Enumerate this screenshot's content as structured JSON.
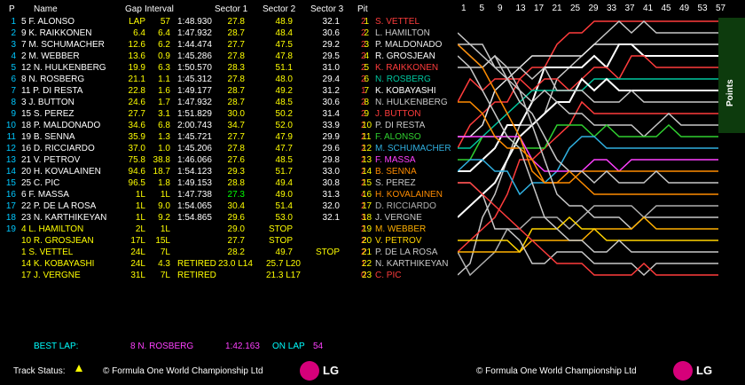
{
  "headers": {
    "p": "P",
    "name": "Name",
    "gap": "Gap",
    "interval": "Interval",
    "s1": "Sector 1",
    "s2": "Sector 2",
    "s3": "Sector 3",
    "pit": "Pit"
  },
  "timing": [
    {
      "p": "1",
      "name": "5 F. ALONSO",
      "gap": "LAP",
      "int": "57",
      "lap": "1:48.930",
      "s1": "27.8",
      "s2": "48.9",
      "s3": "32.1",
      "pit": "2",
      "gapColor": "#ffff00",
      "s1Color": "#ffff00",
      "s2Color": "#ffff00",
      "s3Color": "#fff"
    },
    {
      "p": "2",
      "name": "9 K. RAIKKONEN",
      "gap": "6.4",
      "int": "6.4",
      "lap": "1:47.932",
      "s1": "28.7",
      "s2": "48.4",
      "s3": "30.6",
      "pit": "2"
    },
    {
      "p": "3",
      "name": "7 M. SCHUMACHER",
      "gap": "12.6",
      "int": "6.2",
      "lap": "1:44.474",
      "s1": "27.7",
      "s2": "47.5",
      "s3": "29.2",
      "pit": "2"
    },
    {
      "p": "4",
      "name": "2 M. WEBBER",
      "gap": "13.6",
      "int": "0.9",
      "lap": "1:45.286",
      "s1": "27.8",
      "s2": "47.8",
      "s3": "29.5",
      "pit": "2"
    },
    {
      "p": "5",
      "name": "12 N. HULKENBERG",
      "gap": "19.9",
      "int": "6.3",
      "lap": "1:50.570",
      "s1": "28.3",
      "s2": "51.1",
      "s3": "31.0",
      "pit": "2"
    },
    {
      "p": "6",
      "name": "8 N. ROSBERG",
      "gap": "21.1",
      "int": "1.1",
      "lap": "1:45.312",
      "s1": "27.8",
      "s2": "48.0",
      "s3": "29.4",
      "pit": "2"
    },
    {
      "p": "7",
      "name": "11 P. DI RESTA",
      "gap": "22.8",
      "int": "1.6",
      "lap": "1:49.177",
      "s1": "28.7",
      "s2": "49.2",
      "s3": "31.2",
      "pit": "1"
    },
    {
      "p": "8",
      "name": "3 J. BUTTON",
      "gap": "24.6",
      "int": "1.7",
      "lap": "1:47.932",
      "s1": "28.7",
      "s2": "48.5",
      "s3": "30.6",
      "pit": "2"
    },
    {
      "p": "9",
      "name": "15 S. PEREZ",
      "gap": "27.7",
      "int": "3.1",
      "lap": "1:51.829",
      "s1": "30.0",
      "s2": "50.2",
      "s3": "31.4",
      "pit": "2"
    },
    {
      "p": "10",
      "name": "18 P. MALDONADO",
      "gap": "34.6",
      "int": "6.8",
      "lap": "2:00.743",
      "s1": "34.7",
      "s2": "52.0",
      "s3": "33.9",
      "pit": "2"
    },
    {
      "p": "11",
      "name": "19 B. SENNA",
      "gap": "35.9",
      "int": "1.3",
      "lap": "1:45.721",
      "s1": "27.7",
      "s2": "47.9",
      "s3": "29.9",
      "pit": "2"
    },
    {
      "p": "12",
      "name": "16 D. RICCIARDO",
      "gap": "37.0",
      "int": "1.0",
      "lap": "1:45.206",
      "s1": "27.8",
      "s2": "47.7",
      "s3": "29.6",
      "pit": "2"
    },
    {
      "p": "13",
      "name": "21 V. PETROV",
      "gap": "75.8",
      "int": "38.8",
      "lap": "1:46.066",
      "s1": "27.6",
      "s2": "48.5",
      "s3": "29.8",
      "pit": "2"
    },
    {
      "p": "14",
      "name": "20 H. KOVALAINEN",
      "gap": "94.6",
      "int": "18.7",
      "lap": "1:54.123",
      "s1": "29.3",
      "s2": "51.7",
      "s3": "33.0",
      "pit": "2"
    },
    {
      "p": "15",
      "name": "25 C. PIC",
      "gap": "96.5",
      "int": "1.8",
      "lap": "1:49.153",
      "s1": "28.8",
      "s2": "49.4",
      "s3": "30.8",
      "pit": "2"
    },
    {
      "p": "16",
      "name": "6 F. MASSA",
      "gap": "1L",
      "int": "1L",
      "lap": "1:47.738",
      "s1": "27.3",
      "s2": "49.0",
      "s3": "31.3",
      "pit": "4",
      "s1Color": "#00ff00"
    },
    {
      "p": "17",
      "name": "22 P. DE LA ROSA",
      "gap": "1L",
      "int": "9.0",
      "lap": "1:54.065",
      "s1": "30.4",
      "s2": "51.4",
      "s3": "32.0",
      "pit": "2"
    },
    {
      "p": "18",
      "name": "23 N. KARTHIKEYAN",
      "gap": "1L",
      "int": "9.2",
      "lap": "1:54.865",
      "s1": "29.6",
      "s2": "53.0",
      "s3": "32.1",
      "pit": "3"
    },
    {
      "p": "19",
      "name": "4 L. HAMILTON",
      "gap": "2L",
      "int": "1L",
      "lap": "",
      "s1": "29.0",
      "s2": "STOP",
      "s3": "",
      "pit": "2",
      "nameColor": "#ffff00",
      "s2Color": "#ffff00"
    },
    {
      "p": "",
      "name": "10 R. GROSJEAN",
      "gap": "17L",
      "int": "15L",
      "lap": "",
      "s1": "27.7",
      "s2": "STOP",
      "s3": "",
      "pit": "2",
      "nameColor": "#ffff00",
      "s2Color": "#ffff00"
    },
    {
      "p": "",
      "name": "1 S. VETTEL",
      "gap": "24L",
      "int": "7L",
      "lap": "",
      "s1": "28.2",
      "s2": "49.7",
      "s3": "STOP",
      "pit": "2",
      "nameColor": "#ffff00",
      "s3Color": "#ffff00"
    },
    {
      "p": "",
      "name": "14 K. KOBAYASHI",
      "gap": "24L",
      "int": "4.3",
      "lap": "RETIRED",
      "s1": "23.0 L14",
      "s2": "25.7 L20",
      "s3": "",
      "pit": "1",
      "nameColor": "#ffff00",
      "lapColor": "#ffff00"
    },
    {
      "p": "",
      "name": "17 J. VERGNE",
      "gap": "31L",
      "int": "7L",
      "lap": "RETIRED",
      "s1": "",
      "s2": "21.3 L17",
      "s3": "",
      "pit": "0",
      "nameColor": "#ffff00",
      "lapColor": "#ffff00"
    }
  ],
  "graph": {
    "lap_labels": [
      "1",
      "5",
      "9",
      "13",
      "17",
      "21",
      "25",
      "29",
      "33",
      "37",
      "41",
      "45",
      "49",
      "53",
      "57"
    ],
    "points_label": "Points",
    "standings": [
      {
        "pos": "1",
        "name": "S. VETTEL",
        "color": "#ff3c3c"
      },
      {
        "pos": "2",
        "name": "L. HAMILTON",
        "color": "#c8c8c8"
      },
      {
        "pos": "3",
        "name": "P. MALDONADO",
        "color": "#e8e8e8"
      },
      {
        "pos": "4",
        "name": "R. GROSJEAN",
        "color": "#ffffff"
      },
      {
        "pos": "5",
        "name": "K. RAIKKONEN",
        "color": "#ff3c3c"
      },
      {
        "pos": "6",
        "name": "N. ROSBERG",
        "color": "#00c8a0"
      },
      {
        "pos": "7",
        "name": "K. KOBAYASHI",
        "color": "#ffffff"
      },
      {
        "pos": "8",
        "name": "N. HULKENBERG",
        "color": "#c8c8c8"
      },
      {
        "pos": "9",
        "name": "J. BUTTON",
        "color": "#ff3c3c"
      },
      {
        "pos": "10",
        "name": "P. DI RESTA",
        "color": "#c8c8c8"
      },
      {
        "pos": "11",
        "name": "F. ALONSO",
        "color": "#30d030"
      },
      {
        "pos": "12",
        "name": "M. SCHUMACHER",
        "color": "#30b0e0"
      },
      {
        "pos": "13",
        "name": "F. MASSA",
        "color": "#ff40ff"
      },
      {
        "pos": "14",
        "name": "B. SENNA",
        "color": "#ff8c00"
      },
      {
        "pos": "15",
        "name": "S. PEREZ",
        "color": "#c8c8c8"
      },
      {
        "pos": "16",
        "name": "H. KOVALAINEN",
        "color": "#ff8c00"
      },
      {
        "pos": "17",
        "name": "D. RICCIARDO",
        "color": "#b0b0b0"
      },
      {
        "pos": "18",
        "name": "J. VERGNE",
        "color": "#c8c8c8"
      },
      {
        "pos": "19",
        "name": "M. WEBBER",
        "color": "#ffb000"
      },
      {
        "pos": "20",
        "name": "V. PETROV",
        "color": "#ffd400"
      },
      {
        "pos": "21",
        "name": "P. DE LA ROSA",
        "color": "#c8c8c8"
      },
      {
        "pos": "22",
        "name": "N. KARTHIKEYAN",
        "color": "#c8c8c8"
      },
      {
        "pos": "23",
        "name": "C. PIC",
        "color": "#ff3c3c"
      }
    ]
  },
  "best_lap": {
    "label": "BEST LAP:",
    "driver": "8 N. ROSBERG",
    "time": "1:42.163",
    "on_lap_label": "ON LAP",
    "lap": "54"
  },
  "footer": {
    "track_status_label": "Track Status:",
    "copyright_left": "© Formula One World Championship Ltd",
    "copyright_right": "© Formula One World Championship Ltd",
    "lg": "LG"
  },
  "colors": {
    "position": "#00c8ff",
    "timing": "#ffff00",
    "pit": "#ff3c3c",
    "best_lap_label": "#00ffff",
    "best_lap_value": "#ff40ff"
  }
}
